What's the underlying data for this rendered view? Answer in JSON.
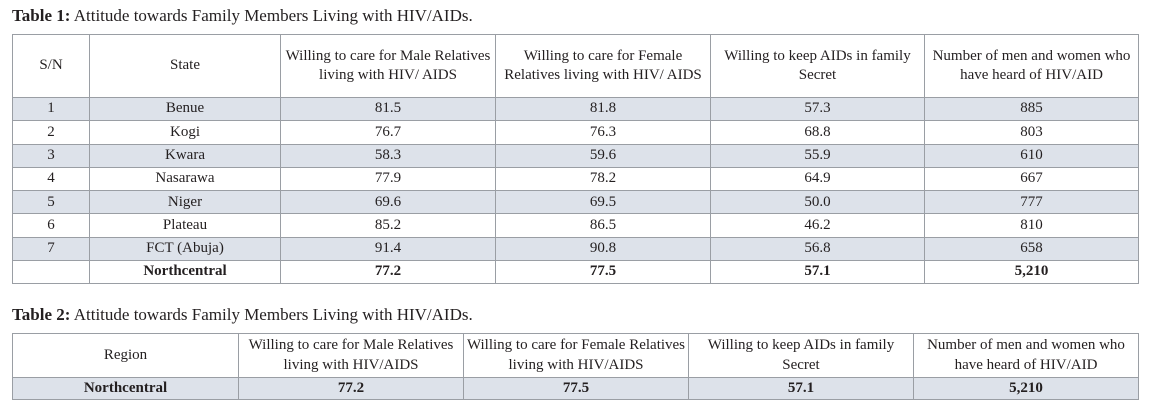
{
  "table1": {
    "caption_label": "Table 1:",
    "caption_text": " Attitude towards Family Members Living with HIV/AIDs.",
    "headers": [
      "S/N",
      "State",
      "Willing to care for Male Relatives living with HIV/ AIDS",
      "Willing to care for Female Relatives living with HIV/ AIDS",
      "Willing to keep AIDs in family Secret",
      "Number of men and women who have heard of HIV/AID"
    ],
    "rows": [
      [
        "1",
        "Benue",
        "81.5",
        "81.8",
        "57.3",
        "885"
      ],
      [
        "2",
        "Kogi",
        "76.7",
        "76.3",
        "68.8",
        "803"
      ],
      [
        "3",
        "Kwara",
        "58.3",
        "59.6",
        "55.9",
        "610"
      ],
      [
        "4",
        "Nasarawa",
        "77.9",
        "78.2",
        "64.9",
        "667"
      ],
      [
        "5",
        "Niger",
        "69.6",
        "69.5",
        "50.0",
        "777"
      ],
      [
        "6",
        "Plateau",
        "85.2",
        "86.5",
        "46.2",
        "810"
      ],
      [
        "7",
        "FCT (Abuja)",
        "91.4",
        "90.8",
        "56.8",
        "658"
      ],
      [
        "",
        "Northcentral",
        "77.2",
        "77.5",
        "57.1",
        "5,210"
      ]
    ]
  },
  "table2": {
    "caption_label": "Table 2:",
    "caption_text": " Attitude towards Family Members Living with HIV/AIDs.",
    "headers": [
      "Region",
      "Willing to care for Male Relatives living with HIV/AIDS",
      "Willing to care for Female Relatives living with HIV/AIDS",
      "Willing to keep AIDs in family Secret",
      "Number of men and women who have heard of HIV/AID"
    ],
    "rows": [
      [
        "Northcentral",
        "77.2",
        "77.5",
        "57.1",
        "5,210"
      ]
    ]
  }
}
